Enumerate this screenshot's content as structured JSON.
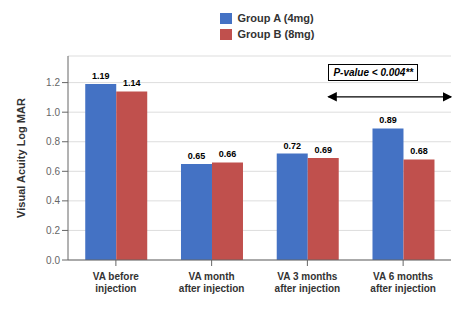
{
  "chart_data": {
    "type": "bar",
    "categories": [
      "VA before\ninjection",
      "VA month\nafter injection",
      "VA 3 months\nafter injection",
      "VA 6 months\nafter injection"
    ],
    "series": [
      {
        "name": "Group A (4mg)",
        "color": "#4472C4",
        "values": [
          1.19,
          0.65,
          0.72,
          0.89
        ]
      },
      {
        "name": "Group B (8mg)",
        "color": "#C0504D",
        "values": [
          1.14,
          0.66,
          0.69,
          0.68
        ]
      }
    ],
    "ylabel": "Visual Acuity Log MAR",
    "ylim": [
      0,
      1.38
    ],
    "yticks": [
      {
        "value": 0,
        "label": "0.0"
      },
      0.2,
      0.4,
      0.6,
      0.8,
      {
        "value": 1,
        "label": "1.0"
      },
      1.2
    ],
    "annotation": "P-value < 0.004**",
    "grid": true,
    "legend": "top",
    "data_labels": true
  }
}
